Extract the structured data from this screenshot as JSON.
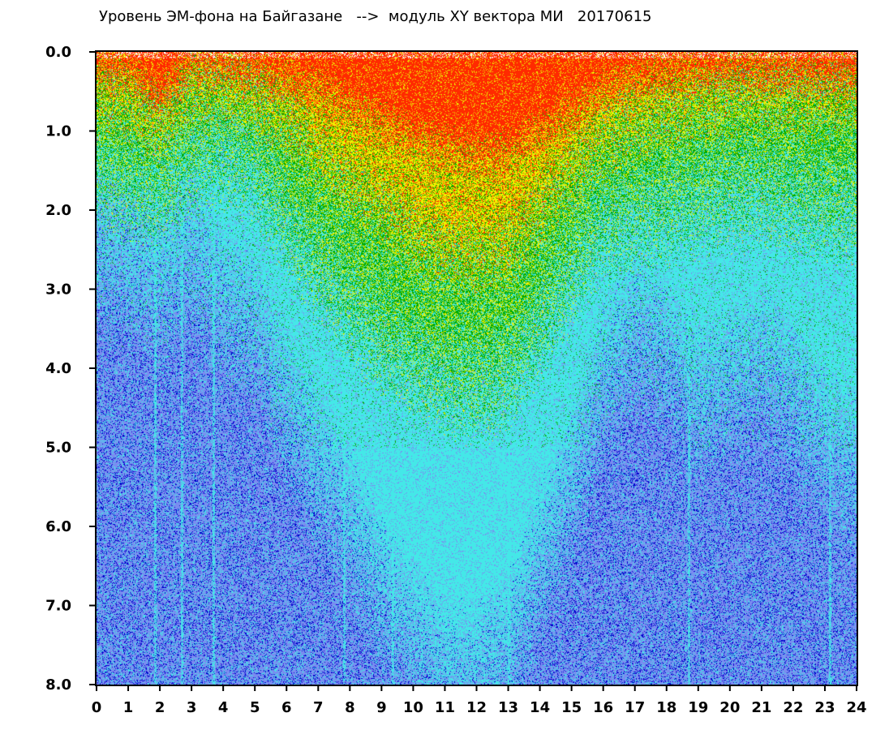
{
  "chart_data": {
    "type": "heatmap",
    "title": "Уровень ЭМ-фона на Байгазане   -->  модуль XY вектора МИ   20170615",
    "xlabel": "",
    "ylabel": "",
    "x_ticks": [
      "0",
      "1",
      "2",
      "3",
      "4",
      "5",
      "6",
      "7",
      "8",
      "9",
      "10",
      "11",
      "12",
      "13",
      "14",
      "15",
      "16",
      "17",
      "18",
      "19",
      "20",
      "21",
      "22",
      "23",
      "24"
    ],
    "y_ticks": [
      "0.0",
      "1.0",
      "2.0",
      "3.0",
      "4.0",
      "5.0",
      "6.0",
      "7.0",
      "8.0"
    ],
    "xlim": [
      0,
      24
    ],
    "ylim": [
      0.0,
      8.0
    ],
    "y_inverted": true,
    "grid": false,
    "legend": "none",
    "colorscale": [
      "#0000cc",
      "#7a8cf0",
      "#44e8e8",
      "#00aa00",
      "#f0f000",
      "#ff2a00"
    ],
    "density_profile": {
      "description_hours": [
        0,
        1,
        2,
        3,
        4,
        5,
        6,
        7,
        8,
        9,
        10,
        11,
        12,
        13,
        14,
        15,
        16,
        17,
        18,
        19,
        20,
        21,
        22,
        23,
        24
      ],
      "red_extent": [
        0.2,
        0.25,
        0.6,
        0.15,
        0.2,
        0.25,
        0.35,
        0.5,
        0.7,
        0.9,
        1.1,
        1.2,
        1.3,
        1.3,
        1.0,
        0.8,
        0.5,
        0.35,
        0.3,
        0.25,
        0.25,
        0.25,
        0.3,
        0.3,
        0.3
      ],
      "yellow_extent": [
        0.6,
        0.7,
        0.9,
        0.5,
        0.5,
        0.6,
        0.9,
        1.3,
        1.7,
        2.0,
        2.3,
        2.5,
        2.6,
        2.5,
        2.0,
        1.5,
        1.1,
        0.9,
        0.8,
        0.7,
        0.6,
        0.6,
        0.6,
        0.6,
        0.6
      ],
      "green_extent": [
        1.6,
        1.7,
        1.8,
        1.4,
        1.3,
        1.5,
        2.2,
        2.8,
        3.3,
        3.7,
        4.0,
        4.2,
        4.3,
        4.1,
        3.5,
        2.8,
        2.2,
        2.1,
        2.0,
        1.9,
        1.8,
        1.8,
        1.9,
        2.0,
        2.0
      ],
      "cyan_extent": [
        2.6,
        2.7,
        3.0,
        2.6,
        3.2,
        3.5,
        4.5,
        5.3,
        6.0,
        6.8,
        7.4,
        8.0,
        8.0,
        7.6,
        6.5,
        5.5,
        4.2,
        3.6,
        3.8,
        4.5,
        4.2,
        4.0,
        4.4,
        5.0,
        5.3
      ]
    }
  }
}
